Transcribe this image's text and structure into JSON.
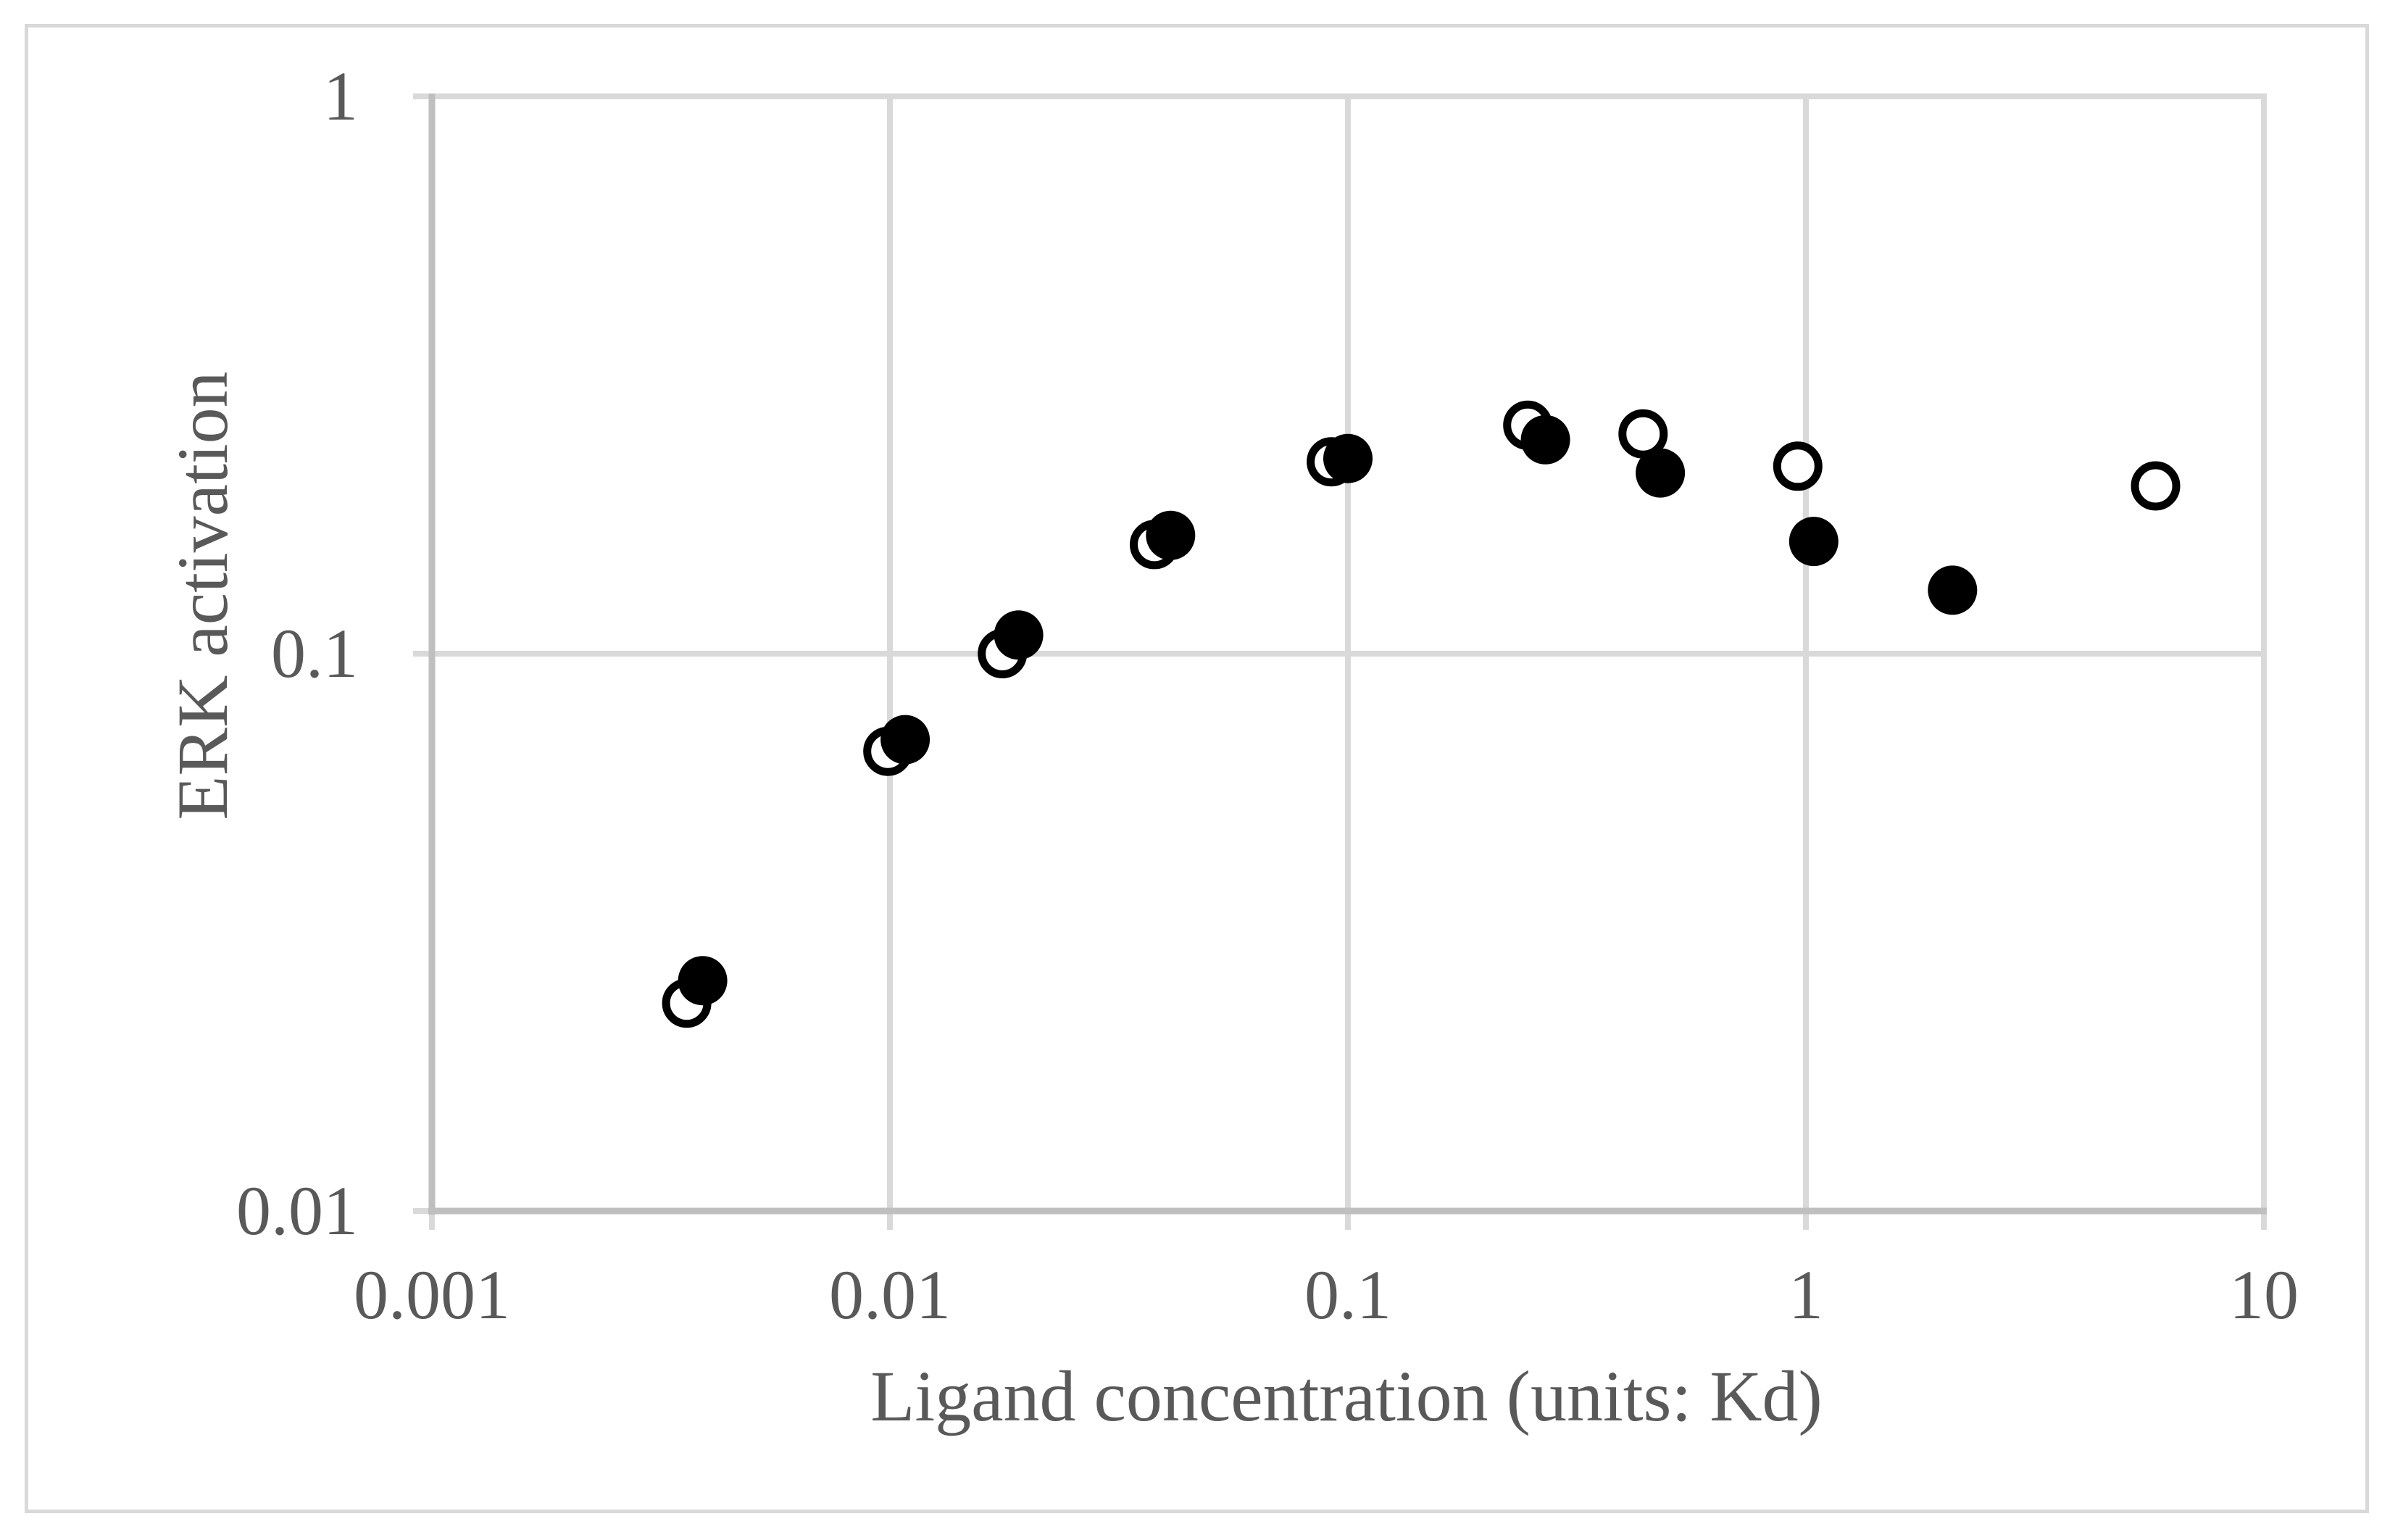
{
  "figure": {
    "background": "#FFFFFF",
    "outer_border_color": "#D9D9D9"
  },
  "chart_data": {
    "type": "scatter",
    "title": "",
    "xlabel": "Ligand concentration (units: Kd)",
    "ylabel": "ERK activation",
    "x_scale": "log",
    "y_scale": "log",
    "xlim": [
      0.001,
      10
    ],
    "ylim": [
      0.01,
      1
    ],
    "grid": true,
    "legend_position": "none",
    "x_ticks": [
      {
        "value": 0.001,
        "label": "0.001"
      },
      {
        "value": 0.01,
        "label": "0.01"
      },
      {
        "value": 0.1,
        "label": "0.1"
      },
      {
        "value": 1,
        "label": "1"
      },
      {
        "value": 10,
        "label": "10"
      }
    ],
    "y_ticks": [
      {
        "value": 0.01,
        "label": "0.01"
      },
      {
        "value": 0.1,
        "label": "0.1"
      },
      {
        "value": 1,
        "label": "1"
      }
    ],
    "series": [
      {
        "name": "open-circle-series",
        "marker": "open-circle",
        "color": "#000000",
        "points": [
          [
            0.0036,
            0.0236
          ],
          [
            0.0099,
            0.0668
          ],
          [
            0.0176,
            0.1
          ],
          [
            0.0378,
            0.157
          ],
          [
            0.092,
            0.221
          ],
          [
            0.247,
            0.257
          ],
          [
            0.441,
            0.248
          ],
          [
            0.96,
            0.217
          ],
          [
            5.8,
            0.2
          ]
        ]
      },
      {
        "name": "filled-circle-series",
        "marker": "filled-circle",
        "color": "#000000",
        "points": [
          [
            0.0039,
            0.0259
          ],
          [
            0.0108,
            0.0701
          ],
          [
            0.0191,
            0.108
          ],
          [
            0.041,
            0.163
          ],
          [
            0.1,
            0.224
          ],
          [
            0.27,
            0.242
          ],
          [
            0.481,
            0.211
          ],
          [
            1.04,
            0.159
          ],
          [
            2.09,
            0.13
          ]
        ]
      }
    ],
    "colors": {
      "marker": "#000000",
      "gridline": "#D9D9D9",
      "axis_line": "#BFBFBF",
      "tick_mark": "#D9D9D9",
      "text": "#595959",
      "background": "#FFFFFF"
    }
  }
}
